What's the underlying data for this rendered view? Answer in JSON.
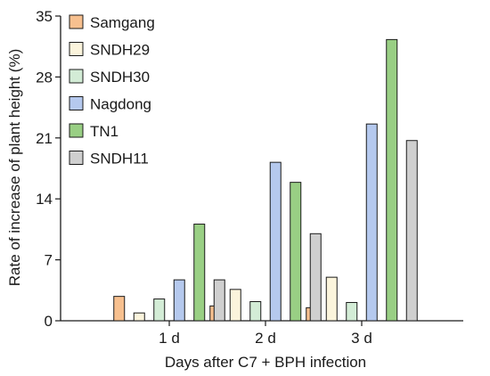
{
  "chart_data": {
    "type": "bar",
    "categories": [
      "1 d",
      "2 d",
      "3 d"
    ],
    "series": [
      {
        "name": "Samgang",
        "color": "#f7c08f",
        "values": [
          2.8,
          1.7,
          1.5
        ]
      },
      {
        "name": "SNDH29",
        "color": "#fbf4dc",
        "values": [
          0.9,
          3.6,
          5.0
        ]
      },
      {
        "name": "SNDH30",
        "color": "#d3ecd6",
        "values": [
          2.5,
          2.2,
          2.1
        ]
      },
      {
        "name": "Nagdong",
        "color": "#b5c9ee",
        "values": [
          4.7,
          18.2,
          22.6
        ]
      },
      {
        "name": "TN1",
        "color": "#99cf84",
        "values": [
          11.1,
          15.9,
          32.3
        ]
      },
      {
        "name": "SNDH11",
        "color": "#cfcfcf",
        "values": [
          4.7,
          10.0,
          20.7
        ]
      }
    ],
    "xlabel": "Days after C7 + BPH infection",
    "ylabel": "Rate of increase of plant height (%)",
    "ylim": [
      0,
      35
    ],
    "yticks": [
      0,
      7,
      14,
      21,
      28,
      35
    ],
    "legend": "top-left",
    "grid": false
  }
}
